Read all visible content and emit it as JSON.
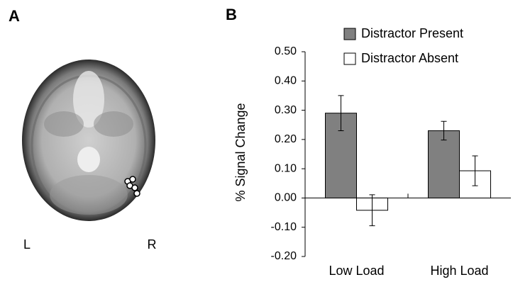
{
  "panel_a": {
    "label": "A",
    "left_label": "L",
    "right_label": "R"
  },
  "chart_data": {
    "type": "bar",
    "panel_label": "B",
    "y_label": "% Signal Change",
    "categories": [
      "Low Load",
      "High Load"
    ],
    "series": [
      {
        "name": "Distractor Present",
        "color": "#808080",
        "values": [
          0.29,
          0.23
        ],
        "errors": [
          0.06,
          0.032
        ]
      },
      {
        "name": "Distractor Absent",
        "color": "#ffffff",
        "values": [
          -0.042,
          0.093
        ],
        "errors": [
          0.053,
          0.051
        ]
      }
    ],
    "ylim": [
      -0.2,
      0.5
    ],
    "yticks": [
      {
        "value": -0.2,
        "label": "-0.20"
      },
      {
        "value": -0.1,
        "label": "-0.10"
      },
      {
        "value": 0,
        "label": "0.00"
      },
      {
        "value": 0.1,
        "label": "0.10"
      },
      {
        "value": 0.2,
        "label": "0.20"
      },
      {
        "value": 0.3,
        "label": "0.30"
      },
      {
        "value": 0.4,
        "label": "0.40"
      },
      {
        "value": 0.5,
        "label": "0.50"
      }
    ],
    "legend": "top-right",
    "grid": false
  }
}
